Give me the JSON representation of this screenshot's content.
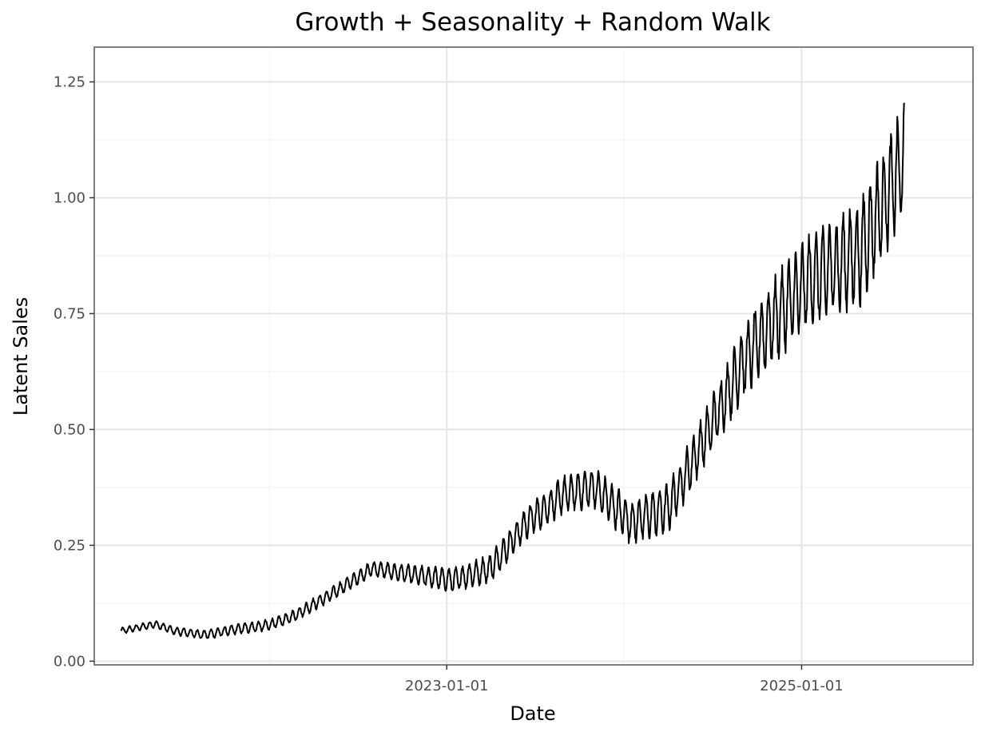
{
  "chart_data": {
    "type": "line",
    "title": "Growth + Seasonality + Random Walk",
    "xlabel": "Date",
    "ylabel": "Latent Sales",
    "x_type": "date",
    "xlim": [
      "2021-01-05",
      "2025-12-20"
    ],
    "ylim": [
      -0.008,
      1.325
    ],
    "x_ticks": [
      "2023-01-01",
      "2025-01-01"
    ],
    "x_minor_ticks": [
      "2022-01-01",
      "2024-01-01"
    ],
    "y_ticks": [
      0.0,
      0.25,
      0.5,
      0.75,
      1.0,
      1.25
    ],
    "y_tick_labels": [
      "0.00",
      "0.25",
      "0.50",
      "0.75",
      "1.00",
      "1.25"
    ],
    "grid": true,
    "legend": "none",
    "series": [
      {
        "color": "#000000",
        "seasonal_period_days": 14,
        "start": "2021-03-01",
        "end": "2025-07-31",
        "trend_points": [
          {
            "date": "2021-03-01",
            "value": 0.065
          },
          {
            "date": "2021-05-10",
            "value": 0.08
          },
          {
            "date": "2021-06-20",
            "value": 0.065
          },
          {
            "date": "2021-08-20",
            "value": 0.057
          },
          {
            "date": "2021-10-31",
            "value": 0.07
          },
          {
            "date": "2021-12-31",
            "value": 0.078
          },
          {
            "date": "2022-02-15",
            "value": 0.095
          },
          {
            "date": "2022-05-01",
            "value": 0.14
          },
          {
            "date": "2022-07-31",
            "value": 0.2
          },
          {
            "date": "2022-10-31",
            "value": 0.185
          },
          {
            "date": "2023-01-15",
            "value": 0.175
          },
          {
            "date": "2023-03-31",
            "value": 0.2
          },
          {
            "date": "2023-06-15",
            "value": 0.3
          },
          {
            "date": "2023-08-31",
            "value": 0.36
          },
          {
            "date": "2023-11-01",
            "value": 0.375
          },
          {
            "date": "2024-01-15",
            "value": 0.3
          },
          {
            "date": "2024-04-01",
            "value": 0.33
          },
          {
            "date": "2024-06-15",
            "value": 0.48
          },
          {
            "date": "2024-08-31",
            "value": 0.64
          },
          {
            "date": "2024-10-31",
            "value": 0.73
          },
          {
            "date": "2025-01-15",
            "value": 0.82
          },
          {
            "date": "2025-04-30",
            "value": 0.88
          },
          {
            "date": "2025-07-31",
            "value": 1.08
          },
          {
            "date": "2025-10-15",
            "value": 1.1
          }
        ],
        "amplitude_points": [
          {
            "date": "2021-03-01",
            "value": 0.006
          },
          {
            "date": "2022-07-31",
            "value": 0.014
          },
          {
            "date": "2023-08-31",
            "value": 0.035
          },
          {
            "date": "2024-06-15",
            "value": 0.05
          },
          {
            "date": "2024-10-31",
            "value": 0.08
          },
          {
            "date": "2025-04-30",
            "value": 0.1
          },
          {
            "date": "2025-10-15",
            "value": 0.11
          }
        ]
      }
    ]
  }
}
